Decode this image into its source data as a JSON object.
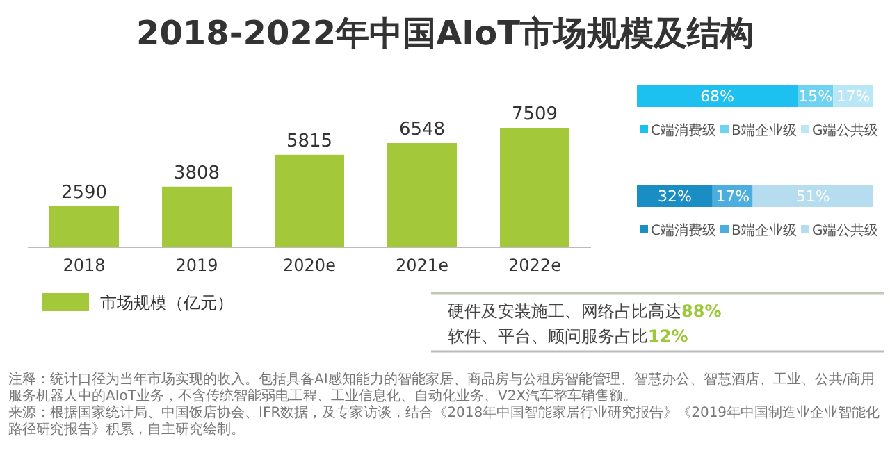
{
  "chart_data": [
    {
      "type": "bar",
      "title": "2018-2022年中国AIoT市场规模及结构",
      "categories": [
        "2018",
        "2019",
        "2020e",
        "2021e",
        "2022e"
      ],
      "series": [
        {
          "name": "市场规模（亿元）",
          "color": "#a3c93a",
          "values": [
            2590,
            3808,
            5815,
            6548,
            7509
          ]
        }
      ],
      "data_labels": true,
      "legend": "bottom left",
      "annotations": [
        "注释：统计口径为当年市场实现的收入。包括具备AI感知能力的智能家居、商品房与公租房智能管理、智慧办公、智慧酒店、工业、公共/商用服务机器人中的AIoT业务，不含传统智能弱电工程、工业信息化、自动化业务、V2X汽车整车销售额。",
        "来源：根据国家统计局、中国饭店协会、IFR数据，及专家访谈，结合《2018年中国智能家居行业研究报告》《2019年中国制造业企业智能化路径研究报告》积累，自主研究绘制。"
      ]
    },
    {
      "type": "bar",
      "orientation": "horizontal",
      "stacked": true,
      "legend": "bottom",
      "categories": [
        null
      ],
      "series": [
        {
          "name": "C端消费级",
          "color": "#1ec0ef",
          "values": [
            68
          ],
          "value_labels": [
            "68%"
          ]
        },
        {
          "name": "B端企业级",
          "color": "#6ed2f1",
          "values": [
            15
          ],
          "value_labels": [
            "15%"
          ]
        },
        {
          "name": "G端公共级",
          "color": "#b9e7f6",
          "values": [
            17
          ],
          "value_labels": [
            "17%"
          ]
        }
      ]
    },
    {
      "type": "bar",
      "orientation": "horizontal",
      "stacked": true,
      "legend": "bottom",
      "categories": [
        null
      ],
      "series": [
        {
          "name": "C端消费级",
          "color": "#1a8ec4",
          "values": [
            32
          ],
          "value_labels": [
            "32%"
          ]
        },
        {
          "name": "B端企业级",
          "color": "#4baede",
          "values": [
            17
          ],
          "value_labels": [
            "17%"
          ]
        },
        {
          "name": "G端公共级",
          "color": "#b6dcf0",
          "values": [
            51
          ],
          "value_labels": [
            "51%"
          ]
        }
      ]
    },
    {
      "type": "other",
      "annotations": [
        "硬件及安装施工、网络占比高达**88%**",
        "软件、平台、顾问服务占比**12%**"
      ]
    }
  ]
}
